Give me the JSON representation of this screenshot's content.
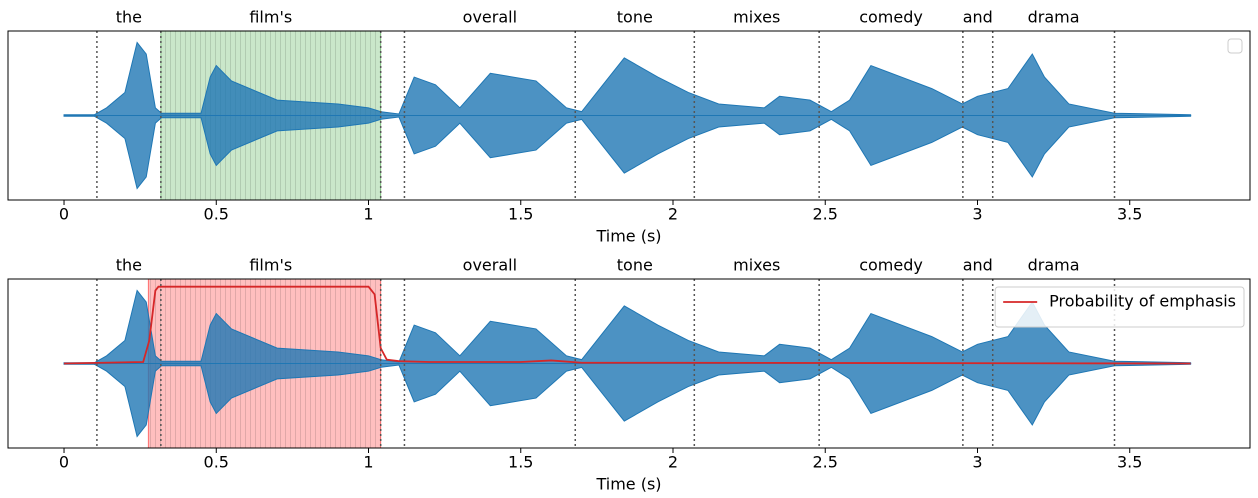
{
  "chart_data": [
    {
      "type": "waveform",
      "xlabel": "Time (s)",
      "xlim": [
        -0.184,
        3.895
      ],
      "ylim": [
        -1.1,
        1.1
      ],
      "xticks": [
        0,
        0.5,
        1,
        1.5,
        2,
        2.5,
        3,
        3.5
      ],
      "words": [
        {
          "text": "the",
          "start": 0.108,
          "end": 0.318
        },
        {
          "text": "film's",
          "start": 0.318,
          "end": 1.04
        },
        {
          "text": "overall",
          "start": 1.118,
          "end": 1.679
        },
        {
          "text": "tone",
          "start": 1.679,
          "end": 2.07
        },
        {
          "text": "mixes",
          "start": 2.07,
          "end": 2.48
        },
        {
          "text": "comedy",
          "start": 2.48,
          "end": 2.952
        },
        {
          "text": "and",
          "start": 2.952,
          "end": 3.05
        },
        {
          "text": "drama",
          "start": 3.05,
          "end": 3.45
        }
      ],
      "highlight": {
        "start": 0.318,
        "end": 1.04,
        "color": "#2ca02c"
      },
      "legend": "upper right",
      "series": [
        {
          "color": "#1f77b4",
          "x": [
            0,
            0.1,
            0.14,
            0.2,
            0.24,
            0.27,
            0.3,
            0.32,
            0.45,
            0.48,
            0.5,
            0.55,
            0.7,
            0.9,
            1.0,
            1.04,
            1.1,
            1.15,
            1.22,
            1.3,
            1.4,
            1.55,
            1.65,
            1.7,
            1.75,
            1.84,
            1.95,
            2.05,
            2.15,
            2.3,
            2.35,
            2.45,
            2.52,
            2.58,
            2.65,
            2.75,
            2.85,
            2.95,
            3.0,
            3.1,
            3.18,
            3.22,
            3.3,
            3.45,
            3.7
          ],
          "values": [
            0.01,
            0.01,
            0.1,
            0.3,
            0.95,
            0.8,
            0.1,
            0.03,
            0.03,
            0.5,
            0.65,
            0.45,
            0.2,
            0.15,
            0.1,
            0.05,
            0.02,
            0.5,
            0.4,
            0.1,
            0.55,
            0.45,
            0.1,
            0.05,
            0.3,
            0.75,
            0.5,
            0.3,
            0.15,
            0.1,
            0.25,
            0.2,
            0.05,
            0.2,
            0.65,
            0.5,
            0.35,
            0.15,
            0.25,
            0.35,
            0.8,
            0.5,
            0.15,
            0.03,
            0.01
          ]
        }
      ]
    },
    {
      "type": "waveform",
      "xlabel": "Time (s)",
      "xlim": [
        -0.184,
        3.895
      ],
      "ylim": [
        -1.1,
        1.1
      ],
      "xticks": [
        0,
        0.5,
        1,
        1.5,
        2,
        2.5,
        3,
        3.5
      ],
      "words": [
        {
          "text": "the",
          "start": 0.108,
          "end": 0.318
        },
        {
          "text": "film's",
          "start": 0.318,
          "end": 1.04
        },
        {
          "text": "overall",
          "start": 1.118,
          "end": 1.679
        },
        {
          "text": "tone",
          "start": 1.679,
          "end": 2.07
        },
        {
          "text": "mixes",
          "start": 2.07,
          "end": 2.48
        },
        {
          "text": "comedy",
          "start": 2.48,
          "end": 2.952
        },
        {
          "text": "and",
          "start": 2.952,
          "end": 3.05
        },
        {
          "text": "drama",
          "start": 3.05,
          "end": 3.45
        }
      ],
      "highlight": {
        "start": 0.277,
        "end": 1.04,
        "color": "#ff0000"
      },
      "legend": "upper right",
      "series": [
        {
          "color": "#1f77b4",
          "x": [
            0,
            0.1,
            0.14,
            0.2,
            0.24,
            0.27,
            0.3,
            0.32,
            0.45,
            0.48,
            0.5,
            0.55,
            0.7,
            0.9,
            1.0,
            1.04,
            1.1,
            1.15,
            1.22,
            1.3,
            1.4,
            1.55,
            1.65,
            1.7,
            1.75,
            1.84,
            1.95,
            2.05,
            2.15,
            2.3,
            2.35,
            2.45,
            2.52,
            2.58,
            2.65,
            2.75,
            2.85,
            2.95,
            3.0,
            3.1,
            3.18,
            3.22,
            3.3,
            3.45,
            3.7
          ],
          "values": [
            0.01,
            0.01,
            0.1,
            0.3,
            0.95,
            0.8,
            0.1,
            0.03,
            0.03,
            0.5,
            0.65,
            0.45,
            0.2,
            0.15,
            0.1,
            0.05,
            0.02,
            0.5,
            0.4,
            0.1,
            0.55,
            0.45,
            0.1,
            0.05,
            0.3,
            0.75,
            0.5,
            0.3,
            0.15,
            0.1,
            0.25,
            0.2,
            0.05,
            0.2,
            0.65,
            0.5,
            0.35,
            0.15,
            0.25,
            0.35,
            0.8,
            0.5,
            0.15,
            0.03,
            0.01
          ]
        },
        {
          "name": "Probability of emphasis",
          "color": "#d62728",
          "line": true,
          "x": [
            0,
            0.26,
            0.28,
            0.3,
            0.31,
            1.0,
            1.02,
            1.04,
            1.06,
            1.1,
            1.2,
            1.5,
            1.6,
            1.7,
            2.0,
            3.7
          ],
          "values": [
            0,
            0.02,
            0.3,
            0.95,
            1,
            1,
            0.9,
            0.2,
            0.05,
            0.03,
            0.02,
            0.02,
            0.04,
            0.01,
            0.01,
            0
          ]
        }
      ]
    }
  ]
}
